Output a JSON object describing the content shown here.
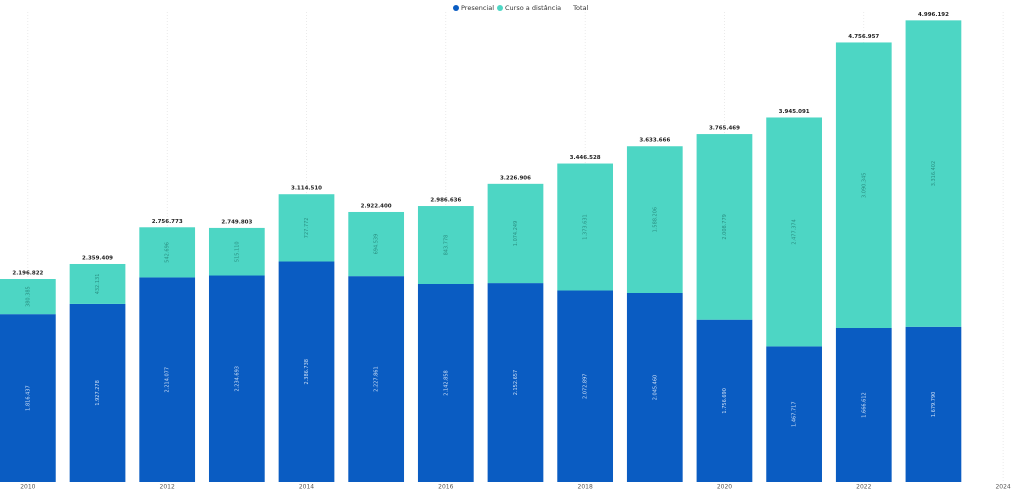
{
  "chart_data": {
    "type": "stacked-bar",
    "x": [
      2010,
      2011,
      2012,
      2013,
      2014,
      2015,
      2016,
      2017,
      2018,
      2019,
      2020,
      2021,
      2022,
      2023
    ],
    "xlim": [
      2009.6,
      2024.3
    ],
    "xticks": [
      2010,
      2012,
      2014,
      2016,
      2018,
      2020,
      2022,
      2024
    ],
    "ylim": [
      0,
      5000000
    ],
    "grid": true,
    "legend": "top",
    "series": [
      {
        "name": "Presencial",
        "color": "#0a5cc2",
        "values": [
          1816437,
          1927278,
          2214077,
          2234693,
          2386738,
          2227861,
          2142858,
          2152657,
          2072897,
          2045460,
          1756690,
          1467717,
          1666612,
          1679790
        ],
        "value_labels": [
          "1.816.437",
          "1.927.278",
          "2.214.077",
          "2.234.693",
          "2.386.738",
          "2.227.861",
          "2.142.858",
          "2.152.657",
          "2.072.897",
          "2.045.460",
          "1.756.690",
          "1.467.717",
          "1.666.612",
          "1.679.790"
        ]
      },
      {
        "name": "Curso a distância",
        "color": "#4dd6c4",
        "values": [
          380385,
          432131,
          542696,
          515110,
          727772,
          694539,
          843778,
          1074249,
          1373631,
          1588206,
          2008779,
          2477374,
          3090345,
          3316402
        ],
        "value_labels": [
          "380.385",
          "432.131",
          "542.696",
          "515.110",
          "727.772",
          "694.539",
          "843.778",
          "1.074.249",
          "1.373.631",
          "1.588.206",
          "2.008.779",
          "2.477.374",
          "3.090.345",
          "3.316.402"
        ]
      },
      {
        "name": "Total",
        "values": [
          2196822,
          2359409,
          2756773,
          2749803,
          3114510,
          2922400,
          2986636,
          3226906,
          3446528,
          3633666,
          3765469,
          3945091,
          4756957,
          4996192
        ],
        "value_labels": [
          "2.196.822",
          "2.359.409",
          "2.756.773",
          "2.749.803",
          "3.114.510",
          "2.922.400",
          "2.986.636",
          "3.226.906",
          "3.446.528",
          "3.633.666",
          "3.765.469",
          "3.945.091",
          "4.756.957",
          "4.996.192"
        ]
      }
    ]
  }
}
